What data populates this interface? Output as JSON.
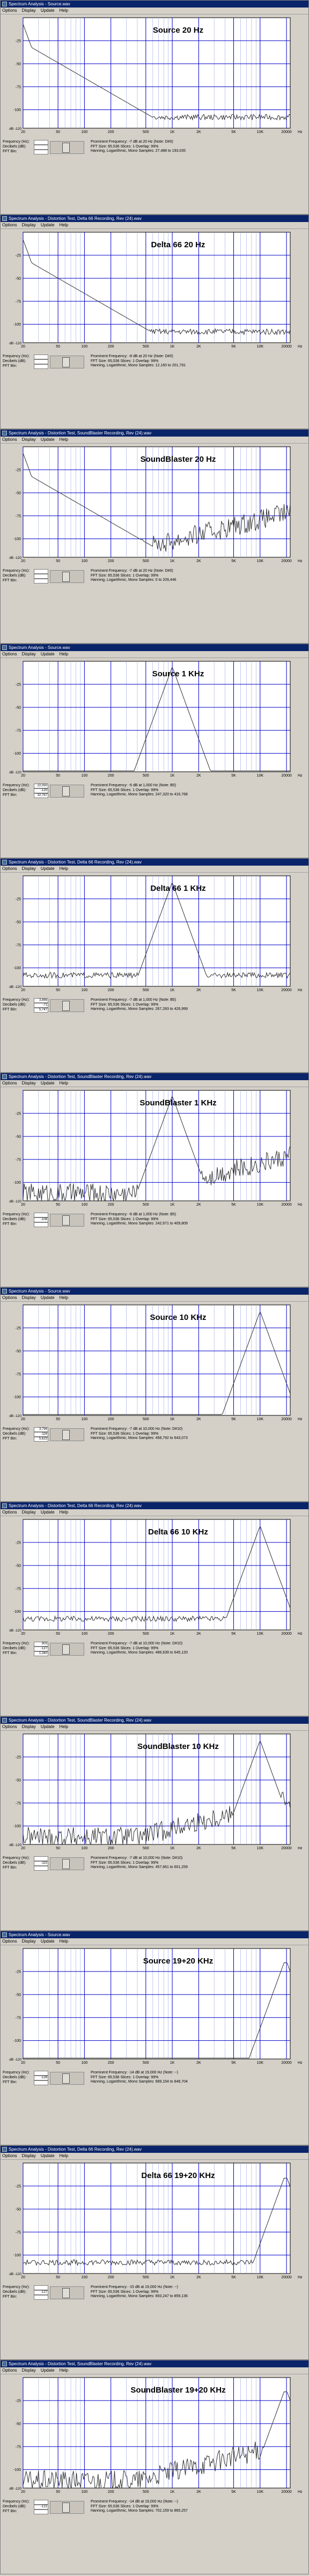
{
  "menu": [
    "Options",
    "Display",
    "Update",
    "Help"
  ],
  "stat_labels": {
    "frequency": "Frequency (Hz):",
    "decibels": "Decibels (dB):",
    "fft_bin": "FFT Bin:"
  },
  "x_ticks": [
    "20",
    "50",
    "100",
    "200",
    "500",
    "1K",
    "2K",
    "5K",
    "10K",
    "20000"
  ],
  "x_unit": "Hz",
  "y_ticks": [
    "-25",
    "-50",
    "-75",
    "-100"
  ],
  "y_min_label": "dB -120",
  "colors": {
    "titlebar": "#0a246a",
    "plot_bg": "#ffffff",
    "grid_major": "#0000c8",
    "grid_minor": "#9da5e0",
    "trace": "#303030"
  },
  "panels": [
    {
      "title": "Spectrum Analysis - Source.wav",
      "label": "Source 20 Hz",
      "frequency": "",
      "decibels": "",
      "bin": "",
      "info": [
        "Prominent Frequency: -7 dB at 20 Hz (Note: D#0)",
        "FFT Size: 65,536  Slices: 1  Overlap: 99%",
        "Hanning, Logarithmic, Mono  Samples: 27,488 to 193,035"
      ],
      "chart_data": {
        "type": "line",
        "peaks": [
          {
            "x": 20,
            "y": -7
          }
        ],
        "floor": "low"
      }
    },
    {
      "title": "Spectrum Analysis - Distortion Test, Delta 66 Recording, Rev (24).wav",
      "label": "Delta 66 20 Hz",
      "frequency": "",
      "decibels": "",
      "bin": "",
      "info": [
        "Prominent Frequency: -8 dB at 20 Hz (Note: D#0)",
        "FFT Size: 65,536  Slices: 1  Overlap: 99%",
        "Hanning, Logarithmic, Mono  Samples: 12,160 to 201,791"
      ],
      "chart_data": {
        "type": "line",
        "peaks": [
          {
            "x": 20,
            "y": -8
          }
        ],
        "floor": "low"
      }
    },
    {
      "title": "Spectrum Analysis - Distortion Test, SoundBlaster Recording, Rev (24).wav",
      "label": "SoundBlaster 20 Hz",
      "frequency": "",
      "decibels": "",
      "bin": "",
      "info": [
        "Prominent Frequency: -7 dB at 20 Hz (Note: D#0)",
        "FFT Size: 65,536  Slices: 1  Overlap: 99%",
        "Hanning, Logarithmic, Mono  Samples: 0 to 209,446"
      ],
      "chart_data": {
        "type": "line",
        "peaks": [
          {
            "x": 20,
            "y": -7
          }
        ],
        "floor": "noisy"
      }
    },
    {
      "title": "Spectrum Analysis - Source.wav",
      "label": "Source 1 KHz",
      "frequency": "22,050",
      "decibels": "-120",
      "bin": "32,767",
      "info": [
        "Prominent Frequency: -6 dB at 1,000 Hz (Note: B5)",
        "FFT Size: 65,536  Slices: 1  Overlap: 99%",
        "Hanning, Logarithmic, Mono  Samples: 247,320 to 416,768"
      ],
      "chart_data": {
        "type": "line",
        "peaks": [
          {
            "x": 1000,
            "y": -6
          }
        ],
        "floor": "flat"
      }
    },
    {
      "title": "Spectrum Analysis - Distortion Test, Delta 66 Recording, Rev (24).wav",
      "label": "Delta 66 1 KHz",
      "frequency": "3,866",
      "decibels": "-71",
      "bin": "5,747",
      "info": [
        "Prominent Frequency: -7 dB at 1,000 Hz (Note: B5)",
        "FFT Size: 65,536  Slices: 1  Overlap: 99%",
        "Hanning, Logarithmic, Mono  Samples: 267,283 to 426,999"
      ],
      "chart_data": {
        "type": "line",
        "peaks": [
          {
            "x": 1000,
            "y": -7
          }
        ],
        "floor": "low"
      }
    },
    {
      "title": "Spectrum Analysis - Distortion Test, SoundBlaster Recording, Rev (24).wav",
      "label": "SoundBlaster 1 KHz",
      "frequency": "",
      "decibels": "-108",
      "bin": "",
      "info": [
        "Prominent Frequency: -6 dB at 1,000 Hz (Note: B5)",
        "FFT Size: 65,536  Slices: 1  Overlap: 99%",
        "Hanning, Logarithmic, Mono  Samples: 242,671 to 409,809"
      ],
      "chart_data": {
        "type": "line",
        "peaks": [
          {
            "x": 1000,
            "y": -6
          }
        ],
        "floor": "noisy"
      }
    },
    {
      "title": "Spectrum Analysis - Source.wav",
      "label": "Source 10 KHz",
      "frequency": "3,794",
      "decibels": "-116",
      "bin": "5,623",
      "info": [
        "Prominent Frequency: -7 dB at 10,000 Hz (Note: D#10)",
        "FFT Size: 65,536  Slices: 1  Overlap: 99%",
        "Hanning, Logarithmic, Mono  Samples: 458,792 to 643,073"
      ],
      "chart_data": {
        "type": "line",
        "peaks": [
          {
            "x": 10000,
            "y": -7
          }
        ],
        "floor": "flat"
      }
    },
    {
      "title": "Spectrum Analysis - Distortion Test, Delta 66 Recording, Rev (24).wav",
      "label": "Delta 66 10 KHz",
      "frequency": "903",
      "decibels": "-127",
      "bin": "1,340",
      "info": [
        "Prominent Frequency: -7 dB at 10,000 Hz (Note: D#10)",
        "FFT Size: 65,536  Slices: 1  Overlap: 99%",
        "Hanning, Logarithmic, Mono  Samples: 486,639 to 645,120"
      ],
      "chart_data": {
        "type": "line",
        "peaks": [
          {
            "x": 10000,
            "y": -7
          }
        ],
        "floor": "low"
      }
    },
    {
      "title": "Spectrum Analysis - Distortion Test, SoundBlaster Recording, Rev (24).wav",
      "label": "SoundBlaster 10 KHz",
      "frequency": "",
      "decibels": "-115",
      "bin": "",
      "info": [
        "Prominent Frequency: -7 dB at 10,000 Hz (Note: D#10)",
        "FFT Size: 65,536  Slices: 1  Overlap: 99%",
        "Hanning, Logarithmic, Mono  Samples: 457,661 to 601,259"
      ],
      "chart_data": {
        "type": "line",
        "peaks": [
          {
            "x": 10000,
            "y": -7
          }
        ],
        "floor": "noisy"
      }
    },
    {
      "title": "Spectrum Analysis - Source.wav",
      "label": "Source 19+20 KHz",
      "frequency": "",
      "decibels": "-128",
      "bin": "",
      "info": [
        "Prominent Frequency: -14 dB at 19,000 Hz (Note: --)",
        "FFT Size: 65,536  Slices: 1  Overlap: 99%",
        "Hanning, Logarithmic, Mono  Samples: 689,154 to 848,704"
      ],
      "chart_data": {
        "type": "line",
        "peaks": [
          {
            "x": 19000,
            "y": -14
          },
          {
            "x": 20000,
            "y": -14
          }
        ],
        "floor": "flat"
      }
    },
    {
      "title": "Spectrum Analysis - Distortion Test, Delta 66 Recording, Rev (24).wav",
      "label": "Delta 66 19+20 KHz",
      "frequency": "",
      "decibels": "-127",
      "bin": "",
      "info": [
        "Prominent Frequency: -15 dB at 19,000 Hz (Note: --)",
        "FFT Size: 65,536  Slices: 1  Overlap: 99%",
        "Hanning, Logarithmic, Mono  Samples: 693,247 to 859,136"
      ],
      "chart_data": {
        "type": "line",
        "peaks": [
          {
            "x": 19000,
            "y": -15
          },
          {
            "x": 20000,
            "y": -15
          }
        ],
        "floor": "low"
      }
    },
    {
      "title": "Spectrum Analysis - Distortion Test, SoundBlaster Recording, Rev (24).wav",
      "label": "SoundBlaster 19+20 KHz",
      "frequency": "",
      "decibels": "-121",
      "bin": "",
      "info": [
        "Prominent Frequency: -14 dB at 19,000 Hz (Note: --)",
        "FFT Size: 65,536  Slices: 1  Overlap: 99%",
        "Hanning, Logarithmic, Mono  Samples: 702,159 to 865,257"
      ],
      "chart_data": {
        "type": "line",
        "peaks": [
          {
            "x": 19000,
            "y": -14
          },
          {
            "x": 20000,
            "y": -14
          }
        ],
        "floor": "noisy"
      }
    }
  ]
}
